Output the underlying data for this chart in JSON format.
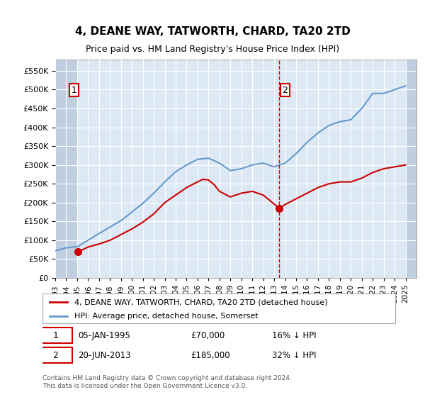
{
  "title": "4, DEANE WAY, TATWORTH, CHARD, TA20 2TD",
  "subtitle": "Price paid vs. HM Land Registry's House Price Index (HPI)",
  "background_color": "#ffffff",
  "plot_bg_color": "#dce9f5",
  "hatch_color": "#c0cfe0",
  "grid_color": "#ffffff",
  "ylim": [
    0,
    580000
  ],
  "yticks": [
    0,
    50000,
    100000,
    150000,
    200000,
    250000,
    300000,
    350000,
    400000,
    450000,
    500000,
    550000
  ],
  "xlim_years": [
    1993,
    2026
  ],
  "xticks_years": [
    1993,
    1994,
    1995,
    1996,
    1997,
    1998,
    1999,
    2000,
    2001,
    2002,
    2003,
    2004,
    2005,
    2006,
    2007,
    2008,
    2009,
    2010,
    2011,
    2012,
    2013,
    2014,
    2015,
    2016,
    2017,
    2018,
    2019,
    2020,
    2021,
    2022,
    2023,
    2024,
    2025
  ],
  "purchase1_year": 1995.04,
  "purchase1_price": 70000,
  "purchase1_label": "1",
  "purchase2_year": 2013.47,
  "purchase2_price": 185000,
  "purchase2_label": "2",
  "red_line_color": "#cc0000",
  "blue_line_color": "#6699cc",
  "marker_color": "#cc0000",
  "dashed_line_color": "#cc0000",
  "legend_label_red": "4, DEANE WAY, TATWORTH, CHARD, TA20 2TD (detached house)",
  "legend_label_blue": "HPI: Average price, detached house, Somerset",
  "annotation1_text": "1",
  "annotation2_text": "2",
  "note1": "1     05-JAN-1995          £70,000          16% ↓ HPI",
  "note2": "2     20-JUN-2013          £185,000          32% ↓ HPI",
  "footer": "Contains HM Land Registry data © Crown copyright and database right 2024.\nThis data is licensed under the Open Government Licence v3.0.",
  "red_series_years": [
    1995.04,
    1995.5,
    1996,
    1997,
    1998,
    1999,
    2000,
    2001,
    2002,
    2003,
    2004,
    2005,
    2006,
    2006.5,
    2007,
    2007.5,
    2008,
    2009,
    2010,
    2011,
    2012,
    2013.47,
    2014,
    2015,
    2016,
    2017,
    2018,
    2019,
    2020,
    2021,
    2022,
    2023,
    2024,
    2025
  ],
  "red_series_values": [
    70000,
    75000,
    82000,
    90000,
    100000,
    115000,
    130000,
    148000,
    170000,
    200000,
    220000,
    240000,
    255000,
    262000,
    260000,
    248000,
    230000,
    215000,
    225000,
    230000,
    220000,
    185000,
    195000,
    210000,
    225000,
    240000,
    250000,
    255000,
    255000,
    265000,
    280000,
    290000,
    295000,
    300000
  ],
  "blue_series_years": [
    1993,
    1994,
    1995.04,
    1996,
    1997,
    1998,
    1999,
    2000,
    2001,
    2002,
    2003,
    2004,
    2005,
    2006,
    2007,
    2008,
    2009,
    2010,
    2011,
    2012,
    2013,
    2014,
    2015,
    2016,
    2017,
    2018,
    2019,
    2020,
    2021,
    2022,
    2023,
    2024,
    2025
  ],
  "blue_series_values": [
    72000,
    80000,
    83000,
    100000,
    118000,
    135000,
    152000,
    175000,
    198000,
    225000,
    255000,
    282000,
    300000,
    315000,
    318000,
    305000,
    285000,
    290000,
    300000,
    305000,
    295000,
    305000,
    330000,
    360000,
    385000,
    405000,
    415000,
    420000,
    450000,
    490000,
    490000,
    500000,
    510000
  ]
}
